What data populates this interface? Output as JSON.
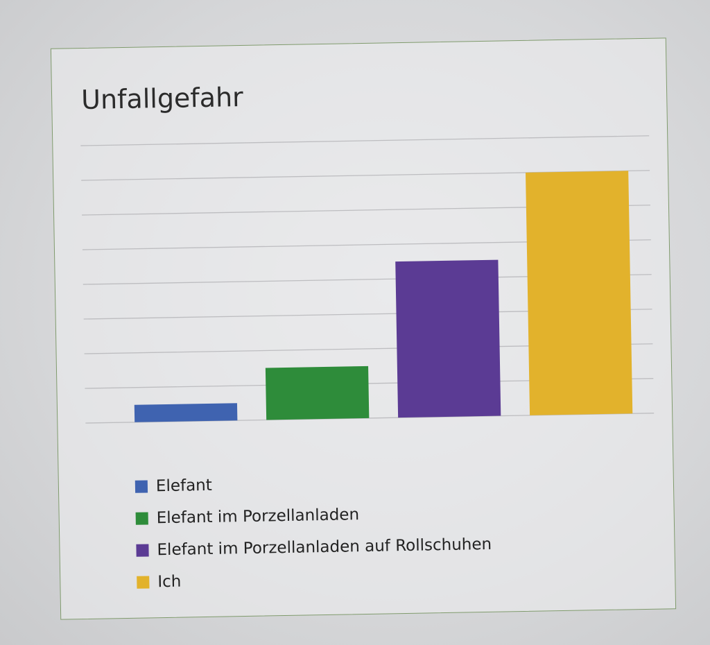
{
  "chart_data": {
    "type": "bar",
    "title": "Unfallgefahr",
    "categories": [
      "Elefant",
      "Elefant im Porzellanladen",
      "Elefant im Porzellanladen auf Rollschuhen",
      "Ich"
    ],
    "values": [
      1,
      3,
      9,
      14
    ],
    "colors": [
      "#3f63b0",
      "#2e8c3a",
      "#5b3b94",
      "#e2b22c"
    ],
    "ylim": [
      0,
      16
    ],
    "grid": true,
    "legend_position": "bottom-left",
    "legend": [
      {
        "label": "Elefant",
        "color": "#3f63b0"
      },
      {
        "label": "Elefant im Porzellanladen",
        "color": "#2e8c3a"
      },
      {
        "label": "Elefant im Porzellanladen auf Rollschuhen",
        "color": "#5b3b94"
      },
      {
        "label": "Ich",
        "color": "#e2b22c"
      }
    ]
  }
}
